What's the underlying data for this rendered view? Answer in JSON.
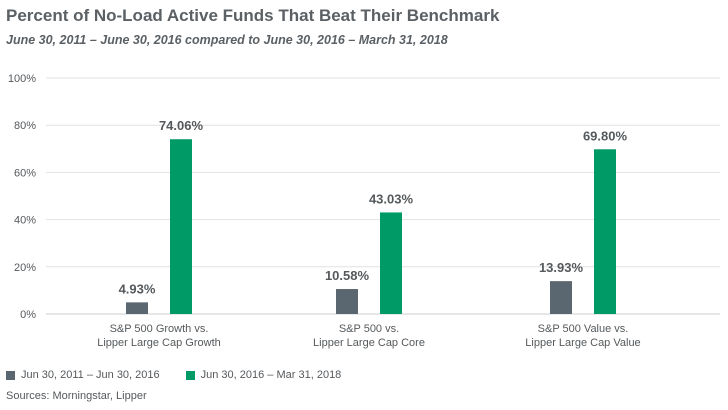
{
  "title": "Percent of No-Load Active Funds That Beat Their Benchmark",
  "subtitle": "June 30, 2011 – June 30, 2016 compared to June 30, 2016 – March 31, 2018",
  "source": "Sources: Morningstar, Lipper",
  "colors": {
    "series1": "#5b6770",
    "series2": "#009a66",
    "grid": "#e2e2e2"
  },
  "chart_data": {
    "type": "bar",
    "categories": [
      [
        "S&P 500 Growth vs.",
        "Lipper Large Cap Growth"
      ],
      [
        "S&P 500 vs.",
        "Lipper Large Cap Core"
      ],
      [
        "S&P 500 Value vs.",
        "Lipper Large Cap Value"
      ]
    ],
    "series": [
      {
        "name": "Jun 30, 2011 – Jun 30, 2016",
        "values": [
          4.93,
          10.58,
          13.93
        ],
        "labels": [
          "4.93%",
          "10.58%",
          "13.93%"
        ]
      },
      {
        "name": "Jun 30, 2016 – Mar 31, 2018",
        "values": [
          74.06,
          43.03,
          69.8
        ],
        "labels": [
          "74.06%",
          "43.03%",
          "69.80%"
        ]
      }
    ],
    "yticks": [
      "0%",
      "20%",
      "40%",
      "60%",
      "80%",
      "100%"
    ],
    "ylim": [
      0,
      100
    ],
    "grid": true,
    "legend_position": "bottom-left"
  }
}
